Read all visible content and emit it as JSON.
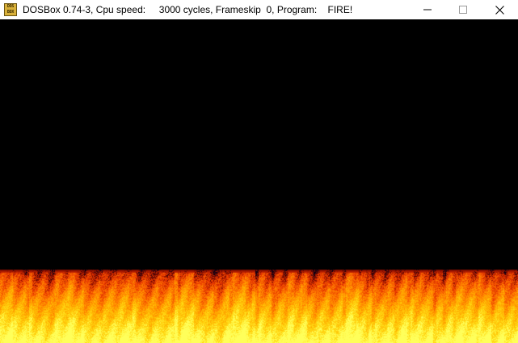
{
  "window": {
    "title_app": "DOSBox 0.74-3, Cpu speed:",
    "title_cycles": "3000 cycles, Frameskip  0, Program:",
    "title_program": "FIRE!",
    "icon_label_top": "DOS",
    "icon_label_bottom": "BOX",
    "icon": "dosbox-icon"
  },
  "controls": {
    "minimize": "minimize-icon",
    "maximize": "maximize-icon",
    "close": "close-icon"
  },
  "screen": {
    "background": "#000000",
    "effect": "fire",
    "fire_colors": [
      "#2a0000",
      "#b01000",
      "#f04000",
      "#ff8000",
      "#ffc000",
      "#ffff40"
    ]
  }
}
